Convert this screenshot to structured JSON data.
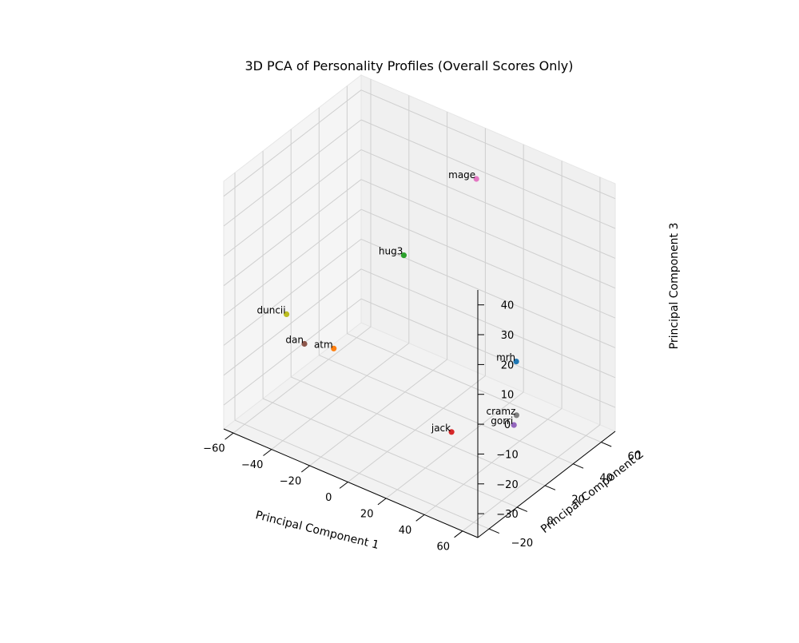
{
  "chart_data": {
    "type": "scatter",
    "title": "3D PCA of Personality Profiles (Overall Scores Only)",
    "xlabel": "Principal Component 1",
    "ylabel": "Principal Component 2",
    "zlabel": "Principal Component 3",
    "xlim": [
      -65,
      68
    ],
    "ylim": [
      -28,
      70
    ],
    "zlim": [
      -38,
      45
    ],
    "xticks": [
      -60,
      -40,
      -20,
      0,
      20,
      40,
      60
    ],
    "yticks": [
      -20,
      0,
      20,
      40,
      60
    ],
    "zticks": [
      -30,
      -20,
      -10,
      0,
      10,
      20,
      30,
      40
    ],
    "x_tick_labels": [
      "−60",
      "−40",
      "−20",
      "0",
      "20",
      "40",
      "60"
    ],
    "y_tick_labels": [
      "−20",
      "0",
      "20",
      "40",
      "60"
    ],
    "z_tick_labels": [
      "−30",
      "−20",
      "−10",
      "0",
      "10",
      "20",
      "30",
      "40"
    ],
    "grid": true,
    "points": [
      {
        "label": "mrh",
        "x": 25,
        "y": 58,
        "z": -22,
        "color": "#1f77b4"
      },
      {
        "label": "atm",
        "x": -50,
        "y": 30,
        "z": -28,
        "color": "#ff7f0e"
      },
      {
        "label": "hug3",
        "x": -28,
        "y": 50,
        "z": 2,
        "color": "#2ca02c"
      },
      {
        "label": "jack",
        "x": 30,
        "y": 5,
        "z": -25,
        "color": "#d62728"
      },
      {
        "label": "gorri",
        "x": 48,
        "y": 25,
        "z": -25,
        "color": "#9467bd"
      },
      {
        "label": "dan",
        "x": -58,
        "y": 20,
        "z": -25,
        "color": "#8c564b"
      },
      {
        "label": "mage",
        "x": 10,
        "y": 50,
        "z": 38,
        "color": "#e377c2"
      },
      {
        "label": "cramz",
        "x": 42,
        "y": 35,
        "z": -27,
        "color": "#7f7f7f"
      },
      {
        "label": "duncii",
        "x": -60,
        "y": 10,
        "z": -12,
        "color": "#bcbd22"
      }
    ]
  }
}
